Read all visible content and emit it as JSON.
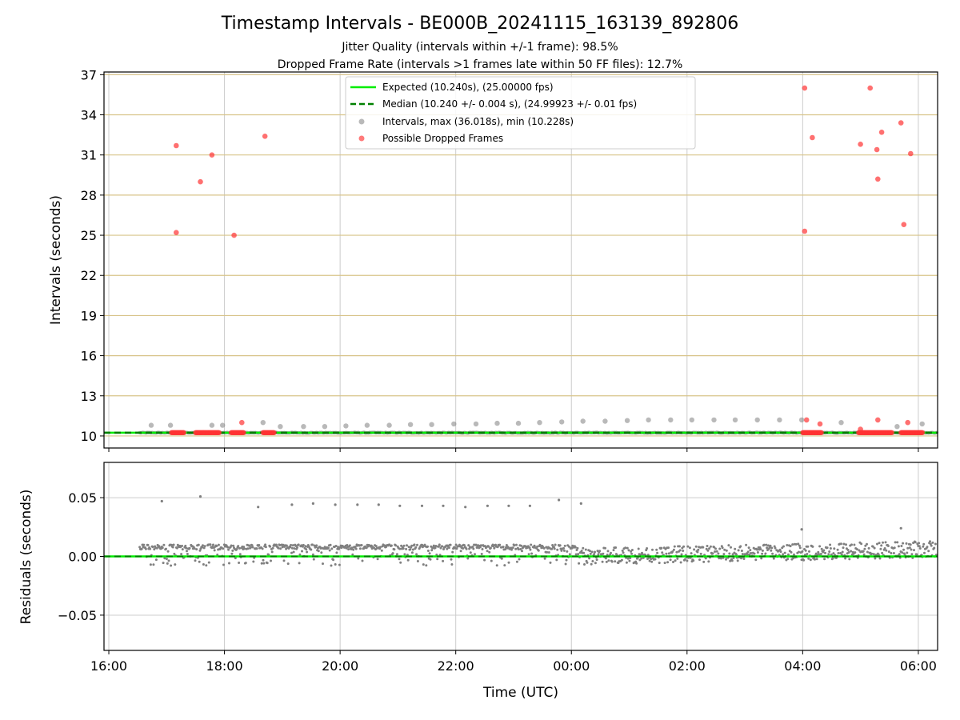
{
  "figure": {
    "title": "Timestamp Intervals - BE000B_20241115_163139_892806",
    "subtitle_1": "Jitter Quality (intervals within +/-1 frame): 98.5%",
    "subtitle_2": "Dropped Frame Rate (intervals >1 frames late within 50 FF files): 12.7%",
    "xlabel": "Time (UTC)"
  },
  "colors": {
    "expected": "#00ee00",
    "median": "#008000",
    "intervals": "#808080",
    "dropped": "#ff3333",
    "hgrid": "#d8c48a",
    "vgrid": "#cccccc"
  },
  "chart_data": [
    {
      "type": "scatter",
      "ylabel": "Intervals (seconds)",
      "ylim": [
        9.1,
        37.2
      ],
      "yticks": [
        "10",
        "13",
        "16",
        "19",
        "22",
        "25",
        "28",
        "31",
        "34",
        "37"
      ],
      "grid": true,
      "legend_placement": "upper-center",
      "legend": [
        {
          "label": "Expected (10.240s), (25.00000 fps)",
          "kind": "solid-line"
        },
        {
          "label": "Median (10.240 +/- 0.004 s), (24.99923 +/- 0.01 fps)",
          "kind": "dashed-line"
        },
        {
          "label": "Intervals, max (36.018s), min (10.228s)",
          "kind": "gray-dot"
        },
        {
          "label": "Possible Dropped Frames",
          "kind": "red-dot"
        }
      ],
      "expected_interval": 10.24,
      "median_interval": 10.24,
      "dropped_frames": [
        {
          "time": "17:10",
          "value": 31.7
        },
        {
          "time": "17:10",
          "value": 25.2
        },
        {
          "time": "17:35",
          "value": 29.0
        },
        {
          "time": "17:47",
          "value": 31.0
        },
        {
          "time": "18:10",
          "value": 25.0
        },
        {
          "time": "18:42",
          "value": 32.4
        },
        {
          "time": "18:18",
          "value": 11.0
        },
        {
          "time": "04:02",
          "value": 36.0
        },
        {
          "time": "04:02",
          "value": 25.3
        },
        {
          "time": "04:10",
          "value": 32.3
        },
        {
          "time": "04:04",
          "value": 11.2
        },
        {
          "time": "04:18",
          "value": 10.9
        },
        {
          "time": "05:00",
          "value": 31.8
        },
        {
          "time": "05:10",
          "value": 36.0
        },
        {
          "time": "05:17",
          "value": 31.4
        },
        {
          "time": "05:18",
          "value": 29.2
        },
        {
          "time": "05:22",
          "value": 32.7
        },
        {
          "time": "05:18",
          "value": 11.2
        },
        {
          "time": "05:42",
          "value": 33.4
        },
        {
          "time": "05:45",
          "value": 25.8
        },
        {
          "time": "05:52",
          "value": 31.1
        },
        {
          "time": "05:49",
          "value": 11.0
        },
        {
          "time": "05:00",
          "value": 10.5
        }
      ],
      "dropped_clusters": [
        {
          "start": "17:05",
          "end": "17:18",
          "value": 10.25
        },
        {
          "start": "17:30",
          "end": "17:55",
          "value": 10.25
        },
        {
          "start": "18:07",
          "end": "18:20",
          "value": 10.25
        },
        {
          "start": "18:40",
          "end": "18:52",
          "value": 10.25
        },
        {
          "start": "04:00",
          "end": "04:20",
          "value": 10.25
        },
        {
          "start": "04:58",
          "end": "05:33",
          "value": 10.25
        },
        {
          "start": "05:42",
          "end": "06:05",
          "value": 10.25
        }
      ],
      "interval_peaks": [
        {
          "time": "16:44",
          "value": 10.8
        },
        {
          "time": "17:04",
          "value": 10.8
        },
        {
          "time": "17:47",
          "value": 10.8
        },
        {
          "time": "17:58",
          "value": 10.8
        },
        {
          "time": "18:40",
          "value": 11.0
        },
        {
          "time": "18:58",
          "value": 10.7
        },
        {
          "time": "19:22",
          "value": 10.7
        },
        {
          "time": "19:44",
          "value": 10.7
        },
        {
          "time": "20:06",
          "value": 10.75
        },
        {
          "time": "20:28",
          "value": 10.8
        },
        {
          "time": "20:51",
          "value": 10.8
        },
        {
          "time": "21:13",
          "value": 10.85
        },
        {
          "time": "21:35",
          "value": 10.85
        },
        {
          "time": "21:58",
          "value": 10.9
        },
        {
          "time": "22:21",
          "value": 10.9
        },
        {
          "time": "22:43",
          "value": 10.95
        },
        {
          "time": "23:05",
          "value": 10.95
        },
        {
          "time": "23:27",
          "value": 11.0
        },
        {
          "time": "23:50",
          "value": 11.05
        },
        {
          "time": "00:12",
          "value": 11.1
        },
        {
          "time": "00:35",
          "value": 11.1
        },
        {
          "time": "00:58",
          "value": 11.15
        },
        {
          "time": "01:20",
          "value": 11.2
        },
        {
          "time": "01:43",
          "value": 11.2
        },
        {
          "time": "02:05",
          "value": 11.2
        },
        {
          "time": "02:28",
          "value": 11.2
        },
        {
          "time": "02:50",
          "value": 11.2
        },
        {
          "time": "03:13",
          "value": 11.2
        },
        {
          "time": "03:36",
          "value": 11.2
        },
        {
          "time": "03:59",
          "value": 11.2
        },
        {
          "time": "04:40",
          "value": 11.0
        },
        {
          "time": "05:38",
          "value": 10.7
        },
        {
          "time": "06:04",
          "value": 10.9
        }
      ]
    },
    {
      "type": "scatter",
      "ylabel": "Residuals (seconds)",
      "ylim": [
        -0.08,
        0.08
      ],
      "yticks": [
        "0.05",
        "0.00",
        "−0.05"
      ],
      "ytick_values": [
        0.05,
        0.0,
        -0.05
      ],
      "xlabel": "Time (UTC)",
      "xlim": [
        "15:55",
        "06:20"
      ],
      "xticks": [
        "16:00",
        "18:00",
        "20:00",
        "22:00",
        "00:00",
        "02:00",
        "04:00",
        "06:00"
      ],
      "grid": true,
      "residual_outliers": [
        {
          "time": "16:55",
          "value": 0.047
        },
        {
          "time": "17:35",
          "value": 0.051
        },
        {
          "time": "18:35",
          "value": 0.042
        },
        {
          "time": "19:10",
          "value": 0.044
        },
        {
          "time": "19:32",
          "value": 0.045
        },
        {
          "time": "19:55",
          "value": 0.044
        },
        {
          "time": "20:18",
          "value": 0.044
        },
        {
          "time": "20:40",
          "value": 0.044
        },
        {
          "time": "21:02",
          "value": 0.043
        },
        {
          "time": "21:25",
          "value": 0.043
        },
        {
          "time": "21:47",
          "value": 0.043
        },
        {
          "time": "22:10",
          "value": 0.042
        },
        {
          "time": "22:33",
          "value": 0.043
        },
        {
          "time": "22:55",
          "value": 0.043
        },
        {
          "time": "23:17",
          "value": 0.043
        },
        {
          "time": "23:47",
          "value": 0.048
        },
        {
          "time": "00:10",
          "value": 0.045
        },
        {
          "time": "03:59",
          "value": 0.023
        },
        {
          "time": "05:42",
          "value": 0.024
        }
      ]
    }
  ]
}
